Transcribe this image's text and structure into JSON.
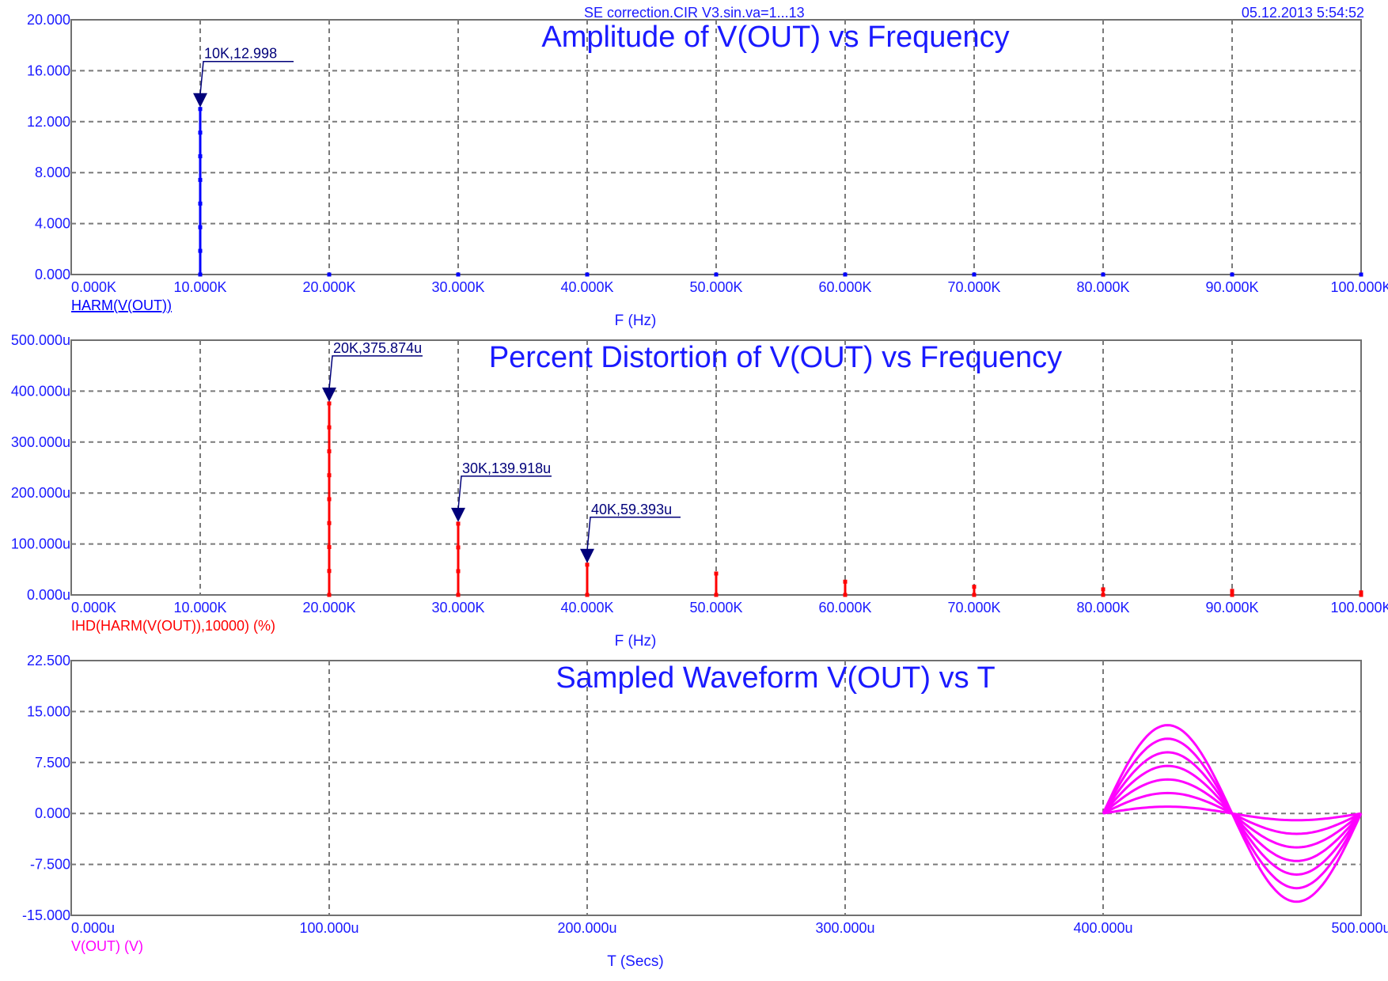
{
  "header": {
    "title": "SE correction.CIR V3.sin.va=1...13",
    "datetime": "05.12.2013 5:54:52"
  },
  "chart_data": [
    {
      "type": "bar",
      "title": "Amplitude of V(OUT) vs Frequency",
      "xlabel": "F (Hz)",
      "series_label": "HARM(V(OUT))",
      "xlim": [
        0,
        100000
      ],
      "ylim": [
        0,
        20
      ],
      "xticks": [
        "0.000K",
        "10.000K",
        "20.000K",
        "30.000K",
        "40.000K",
        "50.000K",
        "60.000K",
        "70.000K",
        "80.000K",
        "90.000K",
        "100.000K"
      ],
      "yticks": [
        "0.000",
        "4.000",
        "8.000",
        "12.000",
        "16.000",
        "20.000"
      ],
      "grid": true,
      "color": "#0000ff",
      "x": [
        10000,
        20000,
        30000,
        40000,
        50000,
        60000,
        70000,
        80000,
        90000,
        100000
      ],
      "values": [
        12.998,
        0,
        0,
        0,
        0,
        0,
        0,
        0,
        0,
        0
      ],
      "annotations": [
        {
          "x": 10000,
          "y": 12.998,
          "text": "10K,12.998"
        }
      ]
    },
    {
      "type": "bar",
      "title": "Percent Distortion of V(OUT) vs Frequency",
      "xlabel": "F (Hz)",
      "series_label": "IHD(HARM(V(OUT)),10000) (%)",
      "xlim": [
        0,
        100000
      ],
      "ylim": [
        0,
        500
      ],
      "xticks": [
        "0.000K",
        "10.000K",
        "20.000K",
        "30.000K",
        "40.000K",
        "50.000K",
        "60.000K",
        "70.000K",
        "80.000K",
        "90.000K",
        "100.000K"
      ],
      "yticks": [
        "0.000u",
        "100.000u",
        "200.000u",
        "300.000u",
        "400.000u",
        "500.000u"
      ],
      "grid": true,
      "color": "#ff0000",
      "x": [
        20000,
        30000,
        40000,
        50000,
        60000,
        70000,
        80000,
        90000,
        100000
      ],
      "values": [
        375.874,
        139.918,
        59.393,
        42,
        26,
        16,
        11,
        8,
        5
      ],
      "annotations": [
        {
          "x": 20000,
          "y": 375.874,
          "text": "20K,375.874u"
        },
        {
          "x": 30000,
          "y": 139.918,
          "text": "30K,139.918u"
        },
        {
          "x": 40000,
          "y": 59.393,
          "text": "40K,59.393u"
        }
      ]
    },
    {
      "type": "line",
      "title": "Sampled Waveform  V(OUT) vs T",
      "xlabel": "T (Secs)",
      "series_label": "V(OUT) (V)",
      "xlim": [
        0,
        500
      ],
      "ylim": [
        -15,
        22.5
      ],
      "xticks": [
        "0.000u",
        "100.000u",
        "200.000u",
        "300.000u",
        "400.000u",
        "500.000u"
      ],
      "yticks": [
        "-15.000",
        "-7.500",
        "0.000",
        "7.500",
        "15.000",
        "22.500"
      ],
      "grid": true,
      "color": "#ff00ff",
      "period_start": 400,
      "period_end": 500,
      "amplitudes": [
        1,
        3,
        5,
        7,
        9,
        11,
        13
      ]
    }
  ]
}
